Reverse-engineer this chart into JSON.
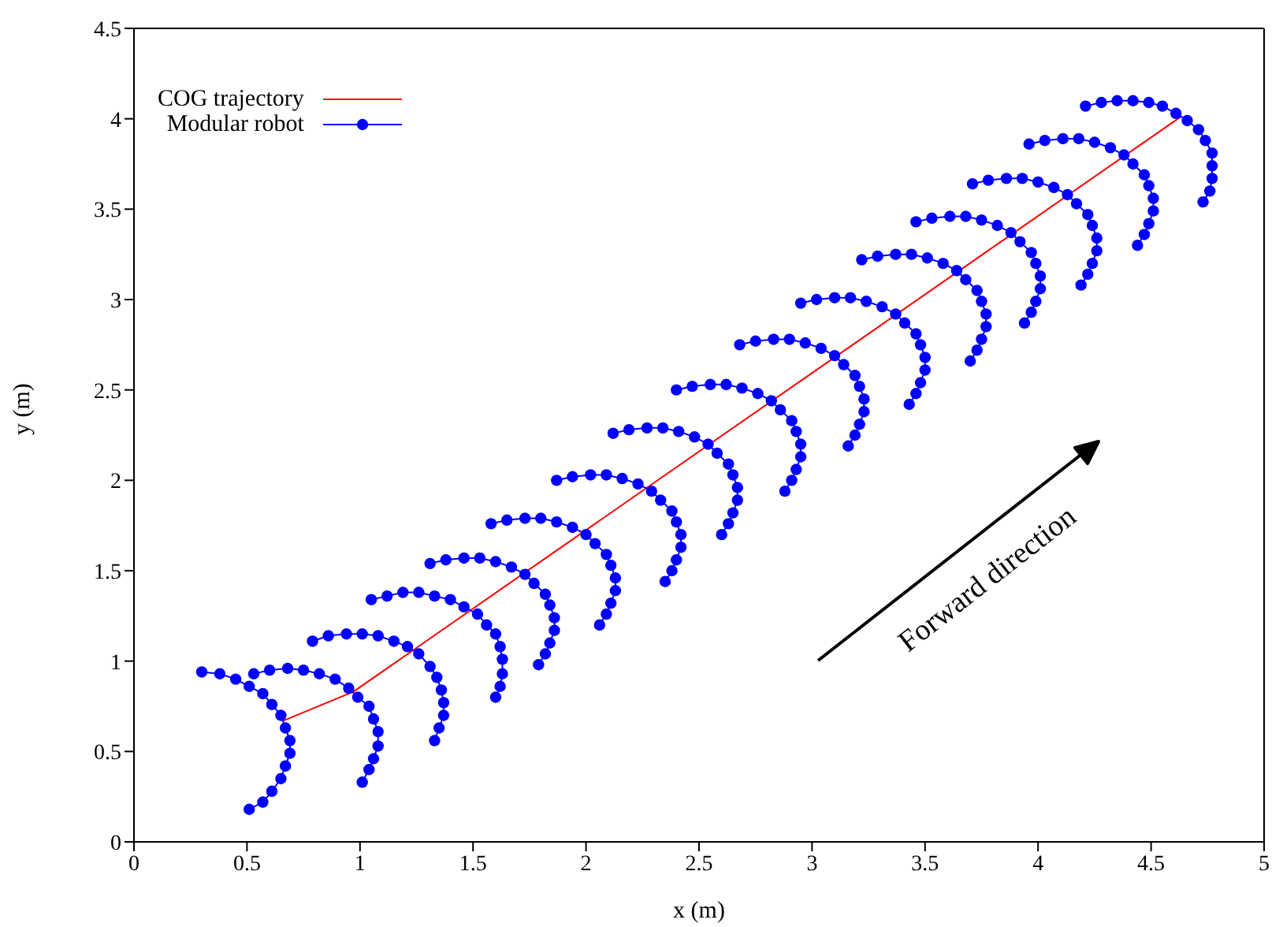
{
  "chart_data": {
    "type": "line",
    "xlabel": "x (m)",
    "ylabel": "y (m)",
    "xlim": [
      0,
      5
    ],
    "ylim": [
      0,
      4.5
    ],
    "xticks": [
      0,
      0.5,
      1,
      1.5,
      2,
      2.5,
      3,
      3.5,
      4,
      4.5,
      5
    ],
    "yticks": [
      0,
      0.5,
      1,
      1.5,
      2,
      2.5,
      3,
      3.5,
      4,
      4.5
    ],
    "grid": false,
    "legend": "top left",
    "annotations": [
      "Forward direction"
    ],
    "series": [
      {
        "name": "COG trajectory",
        "color": "#ff0000",
        "marker": "none",
        "x": [
          0.66,
          0.97,
          4.63
        ],
        "values": [
          0.67,
          0.83,
          4.01
        ]
      },
      {
        "name": "Modular robot",
        "color": "#0000ff",
        "marker": "circle",
        "x": [
          0.3,
          0.38,
          0.45,
          0.51,
          0.57,
          0.61,
          0.65,
          0.67,
          0.69,
          0.69,
          0.67,
          0.65,
          0.61,
          0.57,
          0.51,
          null,
          0.53,
          0.6,
          0.68,
          0.75,
          0.82,
          0.89,
          0.95,
          0.99,
          1.04,
          1.06,
          1.08,
          1.08,
          1.06,
          1.04,
          1.01,
          null,
          0.79,
          0.86,
          0.94,
          1.01,
          1.08,
          1.15,
          1.21,
          1.26,
          1.31,
          1.34,
          1.36,
          1.37,
          1.37,
          1.35,
          1.33,
          null,
          1.05,
          1.12,
          1.19,
          1.26,
          1.33,
          1.4,
          1.46,
          1.52,
          1.56,
          1.6,
          1.62,
          1.63,
          1.63,
          1.62,
          1.6,
          null,
          1.31,
          1.38,
          1.46,
          1.53,
          1.6,
          1.67,
          1.73,
          1.77,
          1.82,
          1.84,
          1.86,
          1.86,
          1.84,
          1.82,
          1.79,
          null,
          1.58,
          1.65,
          1.73,
          1.8,
          1.87,
          1.94,
          2.0,
          2.04,
          2.09,
          2.11,
          2.13,
          2.13,
          2.11,
          2.09,
          2.06,
          null,
          1.87,
          1.94,
          2.02,
          2.09,
          2.16,
          2.23,
          2.29,
          2.33,
          2.38,
          2.4,
          2.42,
          2.42,
          2.4,
          2.38,
          2.35,
          null,
          2.12,
          2.19,
          2.27,
          2.34,
          2.41,
          2.48,
          2.54,
          2.58,
          2.63,
          2.65,
          2.67,
          2.67,
          2.65,
          2.63,
          2.6,
          null,
          2.4,
          2.47,
          2.55,
          2.62,
          2.69,
          2.76,
          2.82,
          2.86,
          2.91,
          2.93,
          2.95,
          2.95,
          2.93,
          2.91,
          2.88,
          null,
          2.68,
          2.75,
          2.83,
          2.9,
          2.97,
          3.04,
          3.1,
          3.14,
          3.19,
          3.21,
          3.23,
          3.23,
          3.21,
          3.19,
          3.16,
          null,
          2.95,
          3.02,
          3.1,
          3.17,
          3.24,
          3.31,
          3.37,
          3.41,
          3.46,
          3.48,
          3.5,
          3.5,
          3.48,
          3.46,
          3.43,
          null,
          3.22,
          3.29,
          3.37,
          3.44,
          3.51,
          3.58,
          3.64,
          3.68,
          3.73,
          3.75,
          3.77,
          3.77,
          3.75,
          3.73,
          3.7,
          null,
          3.46,
          3.53,
          3.61,
          3.68,
          3.75,
          3.82,
          3.88,
          3.92,
          3.97,
          3.99,
          4.01,
          4.01,
          3.99,
          3.97,
          3.94,
          null,
          3.71,
          3.78,
          3.86,
          3.93,
          4.0,
          4.07,
          4.13,
          4.17,
          4.22,
          4.24,
          4.26,
          4.26,
          4.24,
          4.22,
          4.19,
          null,
          3.96,
          4.03,
          4.11,
          4.18,
          4.25,
          4.32,
          4.38,
          4.42,
          4.47,
          4.49,
          4.51,
          4.51,
          4.49,
          4.47,
          4.44,
          null,
          4.21,
          4.28,
          4.35,
          4.42,
          4.49,
          4.55,
          4.61,
          4.66,
          4.71,
          4.74,
          4.77,
          4.77,
          4.77,
          4.76,
          4.73
        ],
        "values": [
          0.94,
          0.93,
          0.9,
          0.86,
          0.82,
          0.76,
          0.7,
          0.63,
          0.56,
          0.49,
          0.42,
          0.35,
          0.28,
          0.22,
          0.18,
          null,
          0.93,
          0.95,
          0.96,
          0.95,
          0.93,
          0.9,
          0.85,
          0.8,
          0.75,
          0.68,
          0.61,
          0.53,
          0.46,
          0.4,
          0.33,
          null,
          1.11,
          1.14,
          1.15,
          1.15,
          1.14,
          1.11,
          1.08,
          1.04,
          0.97,
          0.91,
          0.84,
          0.77,
          0.7,
          0.63,
          0.56,
          null,
          1.34,
          1.36,
          1.38,
          1.38,
          1.36,
          1.34,
          1.3,
          1.26,
          1.2,
          1.15,
          1.08,
          1.01,
          0.93,
          0.86,
          0.8,
          null,
          1.54,
          1.56,
          1.57,
          1.57,
          1.55,
          1.52,
          1.48,
          1.43,
          1.37,
          1.31,
          1.24,
          1.17,
          1.1,
          1.04,
          0.98,
          null,
          1.76,
          1.78,
          1.79,
          1.79,
          1.77,
          1.74,
          1.7,
          1.65,
          1.59,
          1.53,
          1.46,
          1.39,
          1.32,
          1.26,
          1.2,
          null,
          2.0,
          2.02,
          2.03,
          2.03,
          2.01,
          1.98,
          1.94,
          1.89,
          1.83,
          1.77,
          1.7,
          1.63,
          1.56,
          1.5,
          1.44,
          null,
          2.26,
          2.28,
          2.29,
          2.29,
          2.27,
          2.24,
          2.2,
          2.15,
          2.09,
          2.03,
          1.96,
          1.89,
          1.82,
          1.76,
          1.7,
          null,
          2.5,
          2.52,
          2.53,
          2.53,
          2.51,
          2.48,
          2.44,
          2.39,
          2.33,
          2.27,
          2.2,
          2.13,
          2.06,
          2.0,
          1.94,
          null,
          2.75,
          2.77,
          2.78,
          2.78,
          2.76,
          2.73,
          2.69,
          2.64,
          2.58,
          2.52,
          2.45,
          2.38,
          2.31,
          2.25,
          2.19,
          null,
          2.98,
          3.0,
          3.01,
          3.01,
          2.99,
          2.96,
          2.92,
          2.87,
          2.81,
          2.75,
          2.68,
          2.61,
          2.54,
          2.48,
          2.42,
          null,
          3.22,
          3.24,
          3.25,
          3.25,
          3.23,
          3.2,
          3.16,
          3.11,
          3.05,
          2.99,
          2.92,
          2.85,
          2.78,
          2.72,
          2.66,
          null,
          3.43,
          3.45,
          3.46,
          3.46,
          3.44,
          3.41,
          3.37,
          3.32,
          3.26,
          3.2,
          3.13,
          3.06,
          2.99,
          2.93,
          2.87,
          null,
          3.64,
          3.66,
          3.67,
          3.67,
          3.65,
          3.62,
          3.58,
          3.53,
          3.47,
          3.41,
          3.34,
          3.27,
          3.2,
          3.14,
          3.08,
          null,
          3.86,
          3.88,
          3.89,
          3.89,
          3.87,
          3.84,
          3.8,
          3.75,
          3.69,
          3.63,
          3.56,
          3.49,
          3.42,
          3.36,
          3.3,
          null,
          4.07,
          4.09,
          4.1,
          4.1,
          4.09,
          4.07,
          4.03,
          3.99,
          3.94,
          3.88,
          3.81,
          3.74,
          3.67,
          3.6,
          3.54
        ]
      }
    ]
  }
}
